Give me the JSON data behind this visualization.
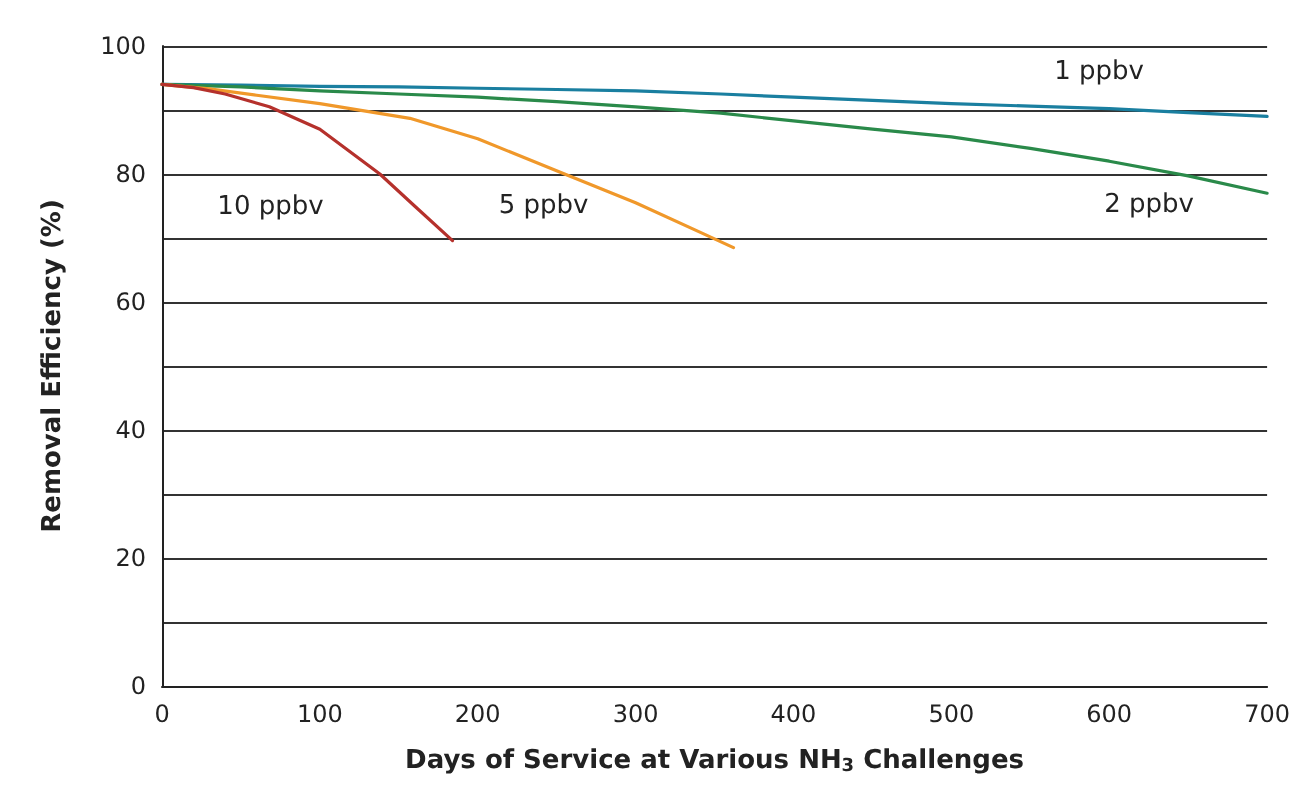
{
  "chart_data": {
    "type": "line",
    "xlabel": "Days of Service at Various NH$_{3}$ Challenges",
    "ylabel": "Removal Efficiency (%)",
    "series": [
      {
        "name": "1 ppbv",
        "color": "#1a7fa0",
        "x": [
          0,
          50,
          100,
          150,
          200,
          250,
          300,
          354,
          400,
          450,
          500,
          550,
          600,
          650,
          700
        ],
        "values": [
          94,
          93.9,
          93.7,
          93.6,
          93.4,
          93.2,
          93,
          92.5,
          92,
          91.5,
          91,
          90.6,
          90.2,
          89.6,
          89
        ]
      },
      {
        "name": "2 ppbv",
        "color": "#2a8a4a",
        "x": [
          0,
          50,
          100,
          150,
          200,
          250,
          300,
          354,
          400,
          450,
          500,
          550,
          600,
          650,
          700
        ],
        "values": [
          94,
          93.6,
          93,
          92.5,
          92,
          91.3,
          90.5,
          89.5,
          88.3,
          87,
          85.8,
          84,
          82,
          79.7,
          77
        ]
      },
      {
        "name": "5 ppbv",
        "color": "#f0982a",
        "x": [
          0,
          30,
          60,
          100,
          157,
          200,
          255,
          300,
          340,
          362
        ],
        "values": [
          94,
          93.3,
          92.3,
          91,
          88.7,
          85.5,
          80,
          75.5,
          71,
          68.5
        ]
      },
      {
        "name": "10 ppbv",
        "color": "#b5312c",
        "x": [
          0,
          20,
          40,
          68,
          100,
          138,
          160,
          184
        ],
        "values": [
          94,
          93.5,
          92.5,
          90.5,
          87,
          80,
          75,
          69.6
        ]
      }
    ],
    "xlim": [
      0,
      700
    ],
    "xticks": [
      0,
      100,
      200,
      300,
      400,
      500,
      600,
      700
    ],
    "ylim": [
      0,
      100
    ],
    "yticks": [
      0,
      {
        "value": 10,
        "label": null
      },
      20,
      {
        "value": 30,
        "label": null
      },
      40,
      {
        "value": 50,
        "label": null
      },
      60,
      {
        "value": 70,
        "label": null
      },
      80,
      {
        "value": 90,
        "label": null
      },
      100
    ],
    "grid": "y",
    "marker": "none",
    "line_style": "solid"
  }
}
